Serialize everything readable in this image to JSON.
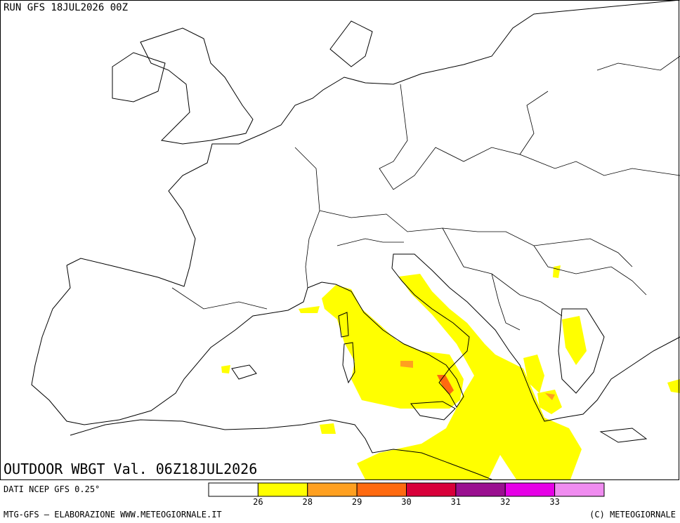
{
  "header": {
    "run": "RUN GFS 18JUL2026 00Z"
  },
  "map": {
    "title": "OUTDOOR WBGT Val. 06Z18JUL2026"
  },
  "legend": {
    "source": "DATI NCEP GFS 0.25°",
    "ticks": [
      26,
      28,
      29,
      30,
      31,
      32,
      33
    ],
    "colors": [
      "#ffffff",
      "#ffff00",
      "#ffa020",
      "#ff6a10",
      "#d8003a",
      "#9a1090",
      "#e600e6",
      "#f08cf0"
    ]
  },
  "footer": {
    "left": "MTG-GFS — ELABORAZIONE WWW.METEOGIORNALE.IT",
    "right": "(C) METEOGIORNALE"
  }
}
